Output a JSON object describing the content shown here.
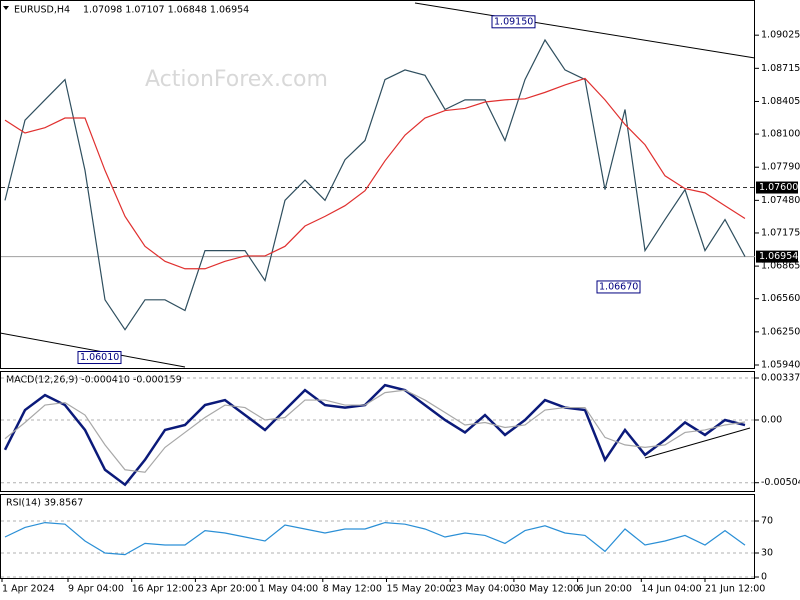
{
  "chart_data": [
    {
      "type": "line",
      "title": "EURUSD,H4",
      "subtitle": "1.07098 1.07107 1.06848 1.06954",
      "watermark": "ActionForex.com",
      "series": [
        {
          "name": "Close",
          "color": "#2f4f5f",
          "values": [
            1.0748,
            1.0823,
            1.0842,
            1.0861,
            1.0776,
            1.0655,
            1.0627,
            1.0655,
            1.0655,
            1.0645,
            1.0701,
            1.0701,
            1.0701,
            1.0673,
            1.0748,
            1.0767,
            1.0748,
            1.0786,
            1.0804,
            1.0861,
            1.087,
            1.0865,
            1.0833,
            1.0842,
            1.0842,
            1.0804,
            1.0861,
            1.0898,
            1.087,
            1.0861,
            1.0758,
            1.0833,
            1.0701,
            1.073,
            1.0758,
            1.0701,
            1.073,
            1.06954
          ]
        },
        {
          "name": "MA",
          "color": "#e0302f",
          "values": [
            1.0823,
            1.0811,
            1.0816,
            1.0825,
            1.0825,
            1.0776,
            1.0733,
            1.0705,
            1.0691,
            1.0684,
            1.0684,
            1.0691,
            1.0696,
            1.0696,
            1.0705,
            1.0724,
            1.0733,
            1.0743,
            1.0757,
            1.0785,
            1.0809,
            1.0825,
            1.0832,
            1.0834,
            1.084,
            1.0842,
            1.0843,
            1.0849,
            1.0856,
            1.0862,
            1.0842,
            1.0819,
            1.08,
            1.0771,
            1.0759,
            1.0755,
            1.0743,
            1.0731
          ]
        }
      ],
      "ylim": [
        1.05912,
        1.09354
      ],
      "yticks": [
        1.09025,
        1.08715,
        1.08405,
        {
          "value": 1.081,
          "label": "1.08100"
        },
        {
          "value": 1.0779,
          "label": "1.07790"
        },
        {
          "value": 1.0748,
          "label": "1.07480"
        },
        1.07175,
        1.06865,
        {
          "value": 1.0656,
          "label": "1.06560"
        },
        {
          "value": 1.0625,
          "label": "1.06250"
        },
        {
          "value": 1.0594,
          "label": "1.05940"
        }
      ],
      "annotations": [
        {
          "value": 1.0915,
          "label": "1.09150"
        },
        {
          "value": 1.0601,
          "label": "1.06010"
        },
        {
          "value": 1.0667,
          "label": "1.06670"
        }
      ],
      "levels": [
        {
          "value": 1.076,
          "label": "1.07600",
          "color": "#333333"
        },
        {
          "value": 1.06954,
          "label": "1.06954",
          "color": "#a0a0a0"
        }
      ]
    },
    {
      "type": "line",
      "title": "MACD(12,26,9) -0.000410 -0.000159",
      "series": [
        {
          "name": "MACD",
          "color": "#0b1a7a",
          "values": [
            -0.0024,
            0.0008,
            0.002,
            0.0012,
            -0.0008,
            -0.004,
            -0.0052,
            -0.0032,
            -0.0008,
            -0.0004,
            0.0012,
            0.0016,
            0.0004,
            -0.0008,
            0.0008,
            0.0024,
            0.0012,
            0.001,
            0.0012,
            0.0028,
            0.0024,
            0.0012,
            0,
            -0.001,
            0.0004,
            -0.0012,
            0,
            0.0016,
            0.001,
            0.0008,
            -0.0032,
            -0.0008,
            -0.0028,
            -0.0016,
            -0.0002,
            -0.0012,
            0,
            -0.00041
          ]
        },
        {
          "name": "Signal",
          "color": "#a8a8a8",
          "values": [
            -0.0015,
            -0.0002,
            0.0012,
            0.0014,
            0.0004,
            -0.002,
            -0.004,
            -0.0042,
            -0.0022,
            -0.001,
            0.0002,
            0.0012,
            0.001,
            0,
            0.0002,
            0.0016,
            0.0016,
            0.0012,
            0.0012,
            0.0022,
            0.0024,
            0.0016,
            0.0006,
            -0.0004,
            -0.0002,
            -0.0006,
            -0.0004,
            0.0008,
            0.001,
            0.001,
            -0.0014,
            -0.002,
            -0.0022,
            -0.002,
            -0.001,
            -0.0008,
            -0.0004,
            -0.000159
          ]
        }
      ],
      "ylim": [
        -0.005786,
        0.003857
      ],
      "yticks": [
        0.003375,
        {
          "value": 0,
          "label": "0.00"
        },
        -0.00504
      ]
    },
    {
      "type": "line",
      "title": "RSI(14) 39.8567",
      "series": [
        {
          "name": "RSI",
          "color": "#2a8fd6",
          "values": [
            50,
            62,
            68,
            66,
            45,
            30,
            28,
            42,
            40,
            40,
            58,
            55,
            50,
            45,
            65,
            60,
            55,
            60,
            60,
            68,
            66,
            60,
            50,
            55,
            52,
            42,
            58,
            64,
            55,
            52,
            32,
            60,
            40,
            45,
            52,
            40,
            58,
            39.8567
          ]
        }
      ],
      "ylim": [
        -1.25,
        102.5
      ],
      "yticks": [
        70,
        30,
        0
      ],
      "time_labels": [
        "1 Apr 2024",
        "9 Apr 04:00",
        "16 Apr 12:00",
        "23 Apr 20:00",
        "1 May 04:00",
        "8 May 12:00",
        "15 May 20:00",
        "23 May 04:00",
        "30 May 12:00",
        "6 Jun 20:00",
        "14 Jun 04:00",
        "21 Jun 12:00"
      ]
    }
  ]
}
